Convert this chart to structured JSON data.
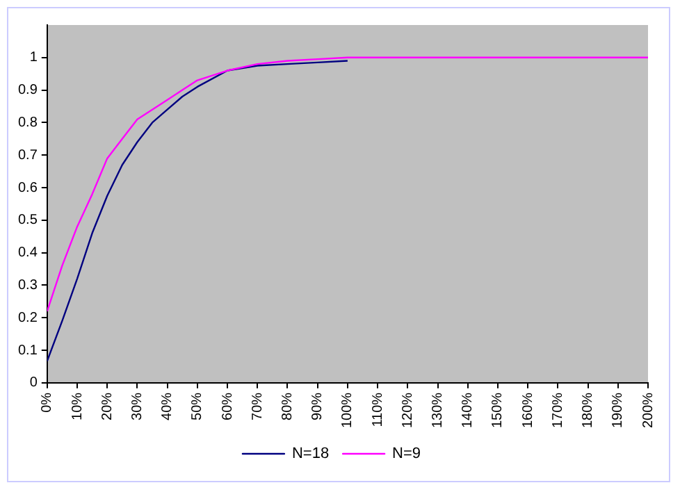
{
  "chart_data": {
    "type": "line",
    "x": [
      0,
      0.05,
      0.1,
      0.15,
      0.2,
      0.25,
      0.3,
      0.35,
      0.4,
      0.45,
      0.5,
      0.6,
      0.7,
      0.8,
      0.9,
      1.0,
      1.1,
      2.0
    ],
    "series": [
      {
        "name": "N=18",
        "color": "#000080",
        "values": [
          0.067,
          0.19,
          0.32,
          0.46,
          0.575,
          0.67,
          0.74,
          0.8,
          0.84,
          0.88,
          0.91,
          0.96,
          0.975,
          0.98,
          0.985,
          0.99,
          null,
          null
        ]
      },
      {
        "name": "N=9",
        "color": "#ff00ff",
        "values": [
          0.22,
          0.36,
          0.48,
          0.58,
          0.69,
          0.75,
          0.81,
          0.84,
          0.87,
          0.9,
          0.93,
          0.96,
          0.98,
          0.99,
          0.995,
          1,
          1,
          1
        ]
      }
    ],
    "xlim": [
      0,
      2
    ],
    "xticks": [
      {
        "value": 0,
        "label": "0%"
      },
      {
        "value": 0.1,
        "label": "10%"
      },
      {
        "value": 0.2,
        "label": "20%"
      },
      {
        "value": 0.3,
        "label": "30%"
      },
      {
        "value": 0.4,
        "label": "40%"
      },
      {
        "value": 0.5,
        "label": "50%"
      },
      {
        "value": 0.6,
        "label": "60%"
      },
      {
        "value": 0.7,
        "label": "70%"
      },
      {
        "value": 0.8,
        "label": "80%"
      },
      {
        "value": 0.9,
        "label": "90%"
      },
      {
        "value": 1.0,
        "label": "100%"
      },
      {
        "value": 1.1,
        "label": "110%"
      },
      {
        "value": 1.2,
        "label": "120%"
      },
      {
        "value": 1.3,
        "label": "130%"
      },
      {
        "value": 1.4,
        "label": "140%"
      },
      {
        "value": 1.5,
        "label": "150%"
      },
      {
        "value": 1.6,
        "label": "160%"
      },
      {
        "value": 1.7,
        "label": "170%"
      },
      {
        "value": 1.8,
        "label": "180%"
      },
      {
        "value": 1.9,
        "label": "190%"
      },
      {
        "value": 2.0,
        "label": "200%"
      }
    ],
    "ylim": [
      0,
      1.1
    ],
    "yticks": [
      0,
      0.1,
      0.2,
      0.3,
      0.4,
      0.5,
      0.6,
      0.7,
      0.8,
      0.9,
      1
    ],
    "grid": false,
    "legend": "bottom",
    "marker": "none",
    "line_style": "solid"
  }
}
